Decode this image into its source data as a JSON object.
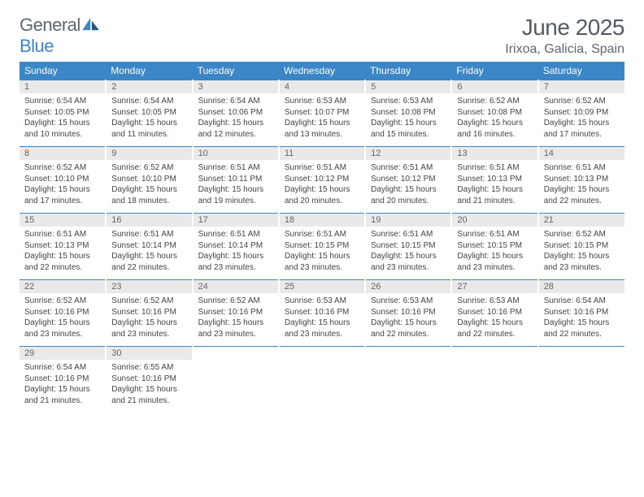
{
  "brand": {
    "part1": "General",
    "part2": "Blue"
  },
  "title": "June 2025",
  "location": "Irixoa, Galicia, Spain",
  "colors": {
    "accent": "#3b86c7",
    "daybg": "#e9e9e9",
    "text": "#444",
    "heading": "#535c64"
  },
  "dayHeaders": [
    "Sunday",
    "Monday",
    "Tuesday",
    "Wednesday",
    "Thursday",
    "Friday",
    "Saturday"
  ],
  "weeks": [
    [
      {
        "n": "1",
        "sr": "6:54 AM",
        "ss": "10:05 PM",
        "dl": "15 hours and 10 minutes."
      },
      {
        "n": "2",
        "sr": "6:54 AM",
        "ss": "10:05 PM",
        "dl": "15 hours and 11 minutes."
      },
      {
        "n": "3",
        "sr": "6:54 AM",
        "ss": "10:06 PM",
        "dl": "15 hours and 12 minutes."
      },
      {
        "n": "4",
        "sr": "6:53 AM",
        "ss": "10:07 PM",
        "dl": "15 hours and 13 minutes."
      },
      {
        "n": "5",
        "sr": "6:53 AM",
        "ss": "10:08 PM",
        "dl": "15 hours and 15 minutes."
      },
      {
        "n": "6",
        "sr": "6:52 AM",
        "ss": "10:08 PM",
        "dl": "15 hours and 16 minutes."
      },
      {
        "n": "7",
        "sr": "6:52 AM",
        "ss": "10:09 PM",
        "dl": "15 hours and 17 minutes."
      }
    ],
    [
      {
        "n": "8",
        "sr": "6:52 AM",
        "ss": "10:10 PM",
        "dl": "15 hours and 17 minutes."
      },
      {
        "n": "9",
        "sr": "6:52 AM",
        "ss": "10:10 PM",
        "dl": "15 hours and 18 minutes."
      },
      {
        "n": "10",
        "sr": "6:51 AM",
        "ss": "10:11 PM",
        "dl": "15 hours and 19 minutes."
      },
      {
        "n": "11",
        "sr": "6:51 AM",
        "ss": "10:12 PM",
        "dl": "15 hours and 20 minutes."
      },
      {
        "n": "12",
        "sr": "6:51 AM",
        "ss": "10:12 PM",
        "dl": "15 hours and 20 minutes."
      },
      {
        "n": "13",
        "sr": "6:51 AM",
        "ss": "10:13 PM",
        "dl": "15 hours and 21 minutes."
      },
      {
        "n": "14",
        "sr": "6:51 AM",
        "ss": "10:13 PM",
        "dl": "15 hours and 22 minutes."
      }
    ],
    [
      {
        "n": "15",
        "sr": "6:51 AM",
        "ss": "10:13 PM",
        "dl": "15 hours and 22 minutes."
      },
      {
        "n": "16",
        "sr": "6:51 AM",
        "ss": "10:14 PM",
        "dl": "15 hours and 22 minutes."
      },
      {
        "n": "17",
        "sr": "6:51 AM",
        "ss": "10:14 PM",
        "dl": "15 hours and 23 minutes."
      },
      {
        "n": "18",
        "sr": "6:51 AM",
        "ss": "10:15 PM",
        "dl": "15 hours and 23 minutes."
      },
      {
        "n": "19",
        "sr": "6:51 AM",
        "ss": "10:15 PM",
        "dl": "15 hours and 23 minutes."
      },
      {
        "n": "20",
        "sr": "6:51 AM",
        "ss": "10:15 PM",
        "dl": "15 hours and 23 minutes."
      },
      {
        "n": "21",
        "sr": "6:52 AM",
        "ss": "10:15 PM",
        "dl": "15 hours and 23 minutes."
      }
    ],
    [
      {
        "n": "22",
        "sr": "6:52 AM",
        "ss": "10:16 PM",
        "dl": "15 hours and 23 minutes."
      },
      {
        "n": "23",
        "sr": "6:52 AM",
        "ss": "10:16 PM",
        "dl": "15 hours and 23 minutes."
      },
      {
        "n": "24",
        "sr": "6:52 AM",
        "ss": "10:16 PM",
        "dl": "15 hours and 23 minutes."
      },
      {
        "n": "25",
        "sr": "6:53 AM",
        "ss": "10:16 PM",
        "dl": "15 hours and 23 minutes."
      },
      {
        "n": "26",
        "sr": "6:53 AM",
        "ss": "10:16 PM",
        "dl": "15 hours and 22 minutes."
      },
      {
        "n": "27",
        "sr": "6:53 AM",
        "ss": "10:16 PM",
        "dl": "15 hours and 22 minutes."
      },
      {
        "n": "28",
        "sr": "6:54 AM",
        "ss": "10:16 PM",
        "dl": "15 hours and 22 minutes."
      }
    ],
    [
      {
        "n": "29",
        "sr": "6:54 AM",
        "ss": "10:16 PM",
        "dl": "15 hours and 21 minutes."
      },
      {
        "n": "30",
        "sr": "6:55 AM",
        "ss": "10:16 PM",
        "dl": "15 hours and 21 minutes."
      },
      null,
      null,
      null,
      null,
      null
    ]
  ],
  "labels": {
    "sunrise": "Sunrise:",
    "sunset": "Sunset:",
    "daylight": "Daylight:"
  }
}
